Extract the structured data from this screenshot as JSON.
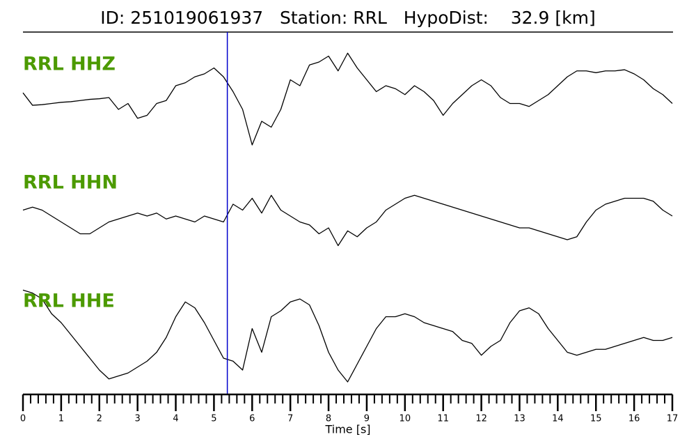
{
  "chart_data": {
    "type": "seismogram",
    "title": "ID: 251019061937   Station: RRL   HypoDist:    32.9 [km]",
    "x_label": "Time [s]",
    "x": [
      0,
      0.25,
      0.5,
      0.75,
      1,
      1.25,
      1.5,
      1.75,
      2,
      2.25,
      2.5,
      2.75,
      3,
      3.25,
      3.5,
      3.75,
      4,
      4.25,
      4.5,
      4.75,
      5,
      5.25,
      5.5,
      5.75,
      6,
      6.25,
      6.5,
      6.75,
      7,
      7.25,
      7.5,
      7.75,
      8,
      8.25,
      8.5,
      8.75,
      9,
      9.25,
      9.5,
      9.75,
      10,
      10.25,
      10.5,
      10.75,
      11,
      11.25,
      11.5,
      11.75,
      12,
      12.25,
      12.5,
      12.75,
      13,
      13.25,
      13.5,
      13.75,
      14,
      14.25,
      14.5,
      14.75,
      15,
      15.25,
      15.5,
      15.75,
      16,
      16.25,
      16.5,
      16.75,
      17
    ],
    "series": [
      {
        "name": "RRL HHZ",
        "color": "#000000",
        "label_color": "#4c9a00",
        "values": [
          0.08,
          -0.13,
          -0.12,
          -0.1,
          -0.08,
          -0.07,
          -0.05,
          -0.03,
          -0.02,
          0.0,
          -0.2,
          -0.1,
          -0.35,
          -0.3,
          -0.1,
          -0.05,
          0.2,
          0.25,
          0.35,
          0.4,
          0.5,
          0.35,
          0.1,
          -0.2,
          -0.8,
          -0.4,
          -0.5,
          -0.2,
          0.3,
          0.2,
          0.55,
          0.6,
          0.7,
          0.45,
          0.75,
          0.5,
          0.3,
          0.1,
          0.2,
          0.15,
          0.05,
          0.2,
          0.1,
          -0.05,
          -0.3,
          -0.1,
          0.05,
          0.2,
          0.3,
          0.2,
          0.0,
          -0.1,
          -0.1,
          -0.15,
          -0.05,
          0.05,
          0.2,
          0.35,
          0.45,
          0.45,
          0.42,
          0.45,
          0.45,
          0.47,
          0.4,
          0.3,
          0.15,
          0.05,
          -0.1
        ]
      },
      {
        "name": "RRL HHN",
        "color": "#000000",
        "label_color": "#4c9a00",
        "values": [
          0.1,
          0.15,
          0.1,
          0.0,
          -0.1,
          -0.2,
          -0.3,
          -0.3,
          -0.2,
          -0.1,
          -0.05,
          0.0,
          0.05,
          0.0,
          0.05,
          -0.05,
          0.0,
          -0.05,
          -0.1,
          0.0,
          -0.05,
          -0.1,
          0.2,
          0.1,
          0.3,
          0.05,
          0.35,
          0.1,
          0.0,
          -0.1,
          -0.15,
          -0.3,
          -0.2,
          -0.5,
          -0.25,
          -0.35,
          -0.2,
          -0.1,
          0.1,
          0.2,
          0.3,
          0.35,
          0.3,
          0.25,
          0.2,
          0.15,
          0.1,
          0.05,
          0.0,
          -0.05,
          -0.1,
          -0.15,
          -0.2,
          -0.2,
          -0.25,
          -0.3,
          -0.35,
          -0.4,
          -0.35,
          -0.1,
          0.1,
          0.2,
          0.25,
          0.3,
          0.3,
          0.3,
          0.25,
          0.1,
          0.0
        ]
      },
      {
        "name": "RRL HHE",
        "color": "#000000",
        "label_color": "#4c9a00",
        "values": [
          0.75,
          0.7,
          0.6,
          0.35,
          0.2,
          0.0,
          -0.2,
          -0.4,
          -0.6,
          -0.75,
          -0.7,
          -0.65,
          -0.55,
          -0.45,
          -0.3,
          -0.05,
          0.3,
          0.55,
          0.45,
          0.2,
          -0.1,
          -0.4,
          -0.45,
          -0.6,
          0.1,
          -0.3,
          0.3,
          0.4,
          0.55,
          0.6,
          0.5,
          0.15,
          -0.3,
          -0.6,
          -0.8,
          -0.5,
          -0.2,
          0.1,
          0.3,
          0.3,
          0.35,
          0.3,
          0.2,
          0.15,
          0.1,
          0.05,
          -0.1,
          -0.15,
          -0.35,
          -0.2,
          -0.1,
          0.2,
          0.4,
          0.45,
          0.35,
          0.1,
          -0.1,
          -0.3,
          -0.35,
          -0.3,
          -0.25,
          -0.25,
          -0.2,
          -0.15,
          -0.1,
          -0.05,
          -0.1,
          -0.1,
          -0.05
        ]
      }
    ],
    "ylim": [
      -1,
      1
    ],
    "xlim": [
      0,
      17
    ],
    "xticks": [
      0,
      1,
      2,
      3,
      4,
      5,
      6,
      7,
      8,
      9,
      10,
      11,
      12,
      13,
      14,
      15,
      16,
      17
    ],
    "xminorticks": [
      0.2,
      0.4,
      0.6,
      0.8,
      1.2,
      1.4,
      1.6,
      1.8,
      2.2,
      2.4,
      2.6,
      2.8,
      3.2,
      3.4,
      3.6,
      3.8,
      4.2,
      4.4,
      4.6,
      4.8,
      5.2,
      5.4,
      5.6,
      5.8,
      6.2,
      6.4,
      6.6,
      6.8,
      7.2,
      7.4,
      7.6,
      7.8,
      8.2,
      8.4,
      8.6,
      8.8,
      9.2,
      9.4,
      9.6,
      9.8,
      10.2,
      10.4,
      10.6,
      10.8,
      11.2,
      11.4,
      11.6,
      11.8,
      12.2,
      12.4,
      12.6,
      12.8,
      13.2,
      13.4,
      13.6,
      13.8,
      14.2,
      14.4,
      14.6,
      14.8,
      15.2,
      15.4,
      15.6,
      15.8,
      16.2,
      16.4,
      16.6,
      16.8
    ],
    "pick": {
      "x": 5.35,
      "color": "#0000cc"
    }
  }
}
